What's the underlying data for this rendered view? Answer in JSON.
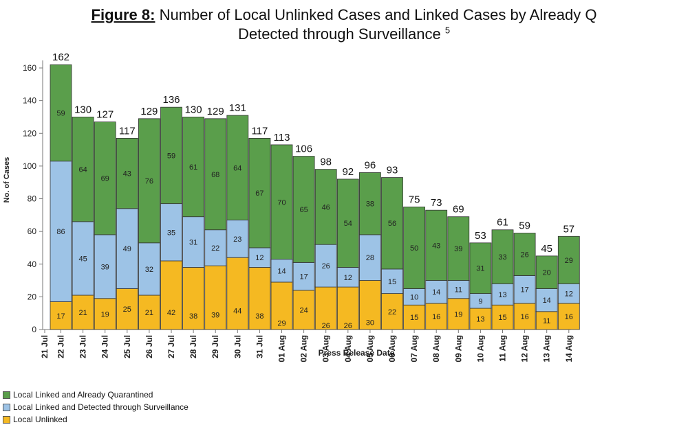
{
  "chart_data": {
    "type": "bar",
    "stacked": true,
    "title_prefix": "Figure 8:",
    "title_line1": "Number of Local Unlinked Cases and Linked Cases by Already Q",
    "title_line2": "Detected through Surveillance",
    "title_sup": "5",
    "xlabel": "Press Release Date",
    "ylabel": "No. of Cases",
    "ylim": [
      0,
      160
    ],
    "yticks": [
      0,
      20,
      40,
      60,
      80,
      100,
      120,
      140,
      160
    ],
    "x_first_label": "21 Jul",
    "categories": [
      "22 Jul",
      "23 Jul",
      "24 Jul",
      "25 Jul",
      "26 Jul",
      "27 Jul",
      "28 Jul",
      "29 Jul",
      "30 Jul",
      "31 Jul",
      "01 Aug",
      "02 Aug",
      "03 Aug",
      "04 Aug",
      "05 Aug",
      "06 Aug",
      "07 Aug",
      "08 Aug",
      "09 Aug",
      "10 Aug",
      "11 Aug",
      "12 Aug",
      "13 Aug",
      "14 Aug"
    ],
    "series": [
      {
        "name": "Local Unlinked",
        "color": "#f5b922",
        "values": [
          17,
          21,
          19,
          25,
          21,
          42,
          38,
          39,
          44,
          38,
          29,
          24,
          26,
          26,
          30,
          22,
          15,
          16,
          19,
          13,
          15,
          16,
          11,
          16
        ]
      },
      {
        "name": "Local Linked and Detected through Surveillance",
        "color": "#9dc3e6",
        "values": [
          86,
          45,
          39,
          49,
          32,
          35,
          31,
          22,
          23,
          12,
          14,
          17,
          26,
          12,
          28,
          15,
          10,
          14,
          11,
          9,
          13,
          17,
          14,
          12
        ]
      },
      {
        "name": "Local Linked and Already Quarantined",
        "color": "#5a9e4b",
        "values": [
          59,
          64,
          69,
          43,
          76,
          59,
          61,
          68,
          64,
          67,
          70,
          65,
          46,
          54,
          38,
          56,
          50,
          43,
          39,
          31,
          33,
          26,
          20,
          29
        ]
      }
    ],
    "totals": [
      162,
      130,
      127,
      117,
      129,
      136,
      130,
      129,
      131,
      117,
      113,
      106,
      98,
      92,
      96,
      93,
      75,
      73,
      69,
      53,
      61,
      59,
      45,
      57
    ],
    "legend_position": "bottom-left",
    "grid": false
  }
}
